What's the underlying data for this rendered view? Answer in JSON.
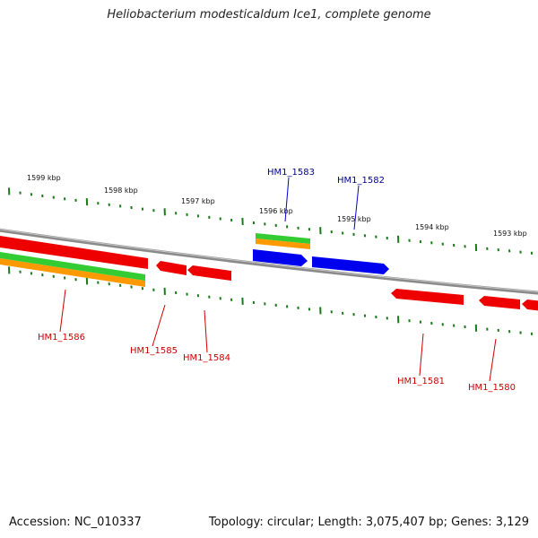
{
  "title": "Heliobacterium modesticaldum Ice1, complete genome",
  "footer": {
    "accession": "Accession: NC_010337",
    "topology": "Topology: circular; Length: 3,075,407 bp; Genes: 3,129"
  },
  "colors": {
    "backbone": "#8a8a8a",
    "tick": "#1a7a1a",
    "forward_gene": "#0000ee",
    "reverse_gene": "#ee0000",
    "forward_label": "#000088",
    "reverse_label": "#cc0000",
    "rrna_green": "#33cc33",
    "rrna_orange": "#ff9900"
  },
  "ruler": {
    "labels": [
      "1599 kbp",
      "1598 kbp",
      "1597 kbp",
      "1596 kbp",
      "1595 kbp",
      "1594 kbp",
      "1593 kbp"
    ]
  },
  "genes": [
    {
      "label": "HM1_1583",
      "strand": "forward"
    },
    {
      "label": "HM1_1582",
      "strand": "forward"
    },
    {
      "label": "HM1_1586",
      "strand": "reverse"
    },
    {
      "label": "HM1_1585",
      "strand": "reverse"
    },
    {
      "label": "HM1_1584",
      "strand": "reverse"
    },
    {
      "label": "HM1_1581",
      "strand": "reverse"
    },
    {
      "label": "HM1_1580",
      "strand": "reverse"
    }
  ]
}
